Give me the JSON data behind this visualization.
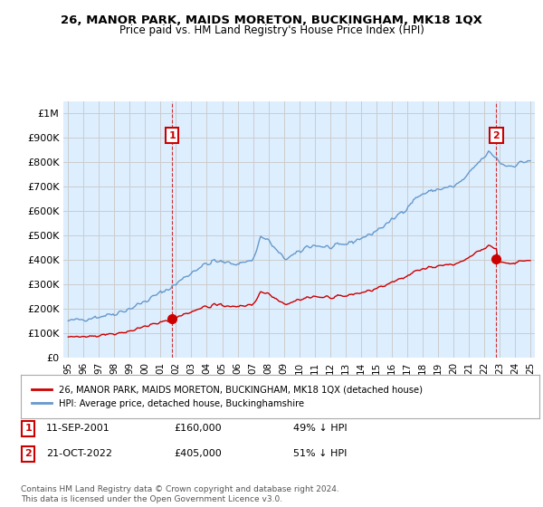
{
  "title": "26, MANOR PARK, MAIDS MORETON, BUCKINGHAM, MK18 1QX",
  "subtitle": "Price paid vs. HM Land Registry's House Price Index (HPI)",
  "red_label": "26, MANOR PARK, MAIDS MORETON, BUCKINGHAM, MK18 1QX (detached house)",
  "blue_label": "HPI: Average price, detached house, Buckinghamshire",
  "annotation1_date": "11-SEP-2001",
  "annotation1_price": "£160,000",
  "annotation1_hpi": "49% ↓ HPI",
  "annotation2_date": "21-OCT-2022",
  "annotation2_price": "£405,000",
  "annotation2_hpi": "51% ↓ HPI",
  "footer": "Contains HM Land Registry data © Crown copyright and database right 2024.\nThis data is licensed under the Open Government Licence v3.0.",
  "red_color": "#cc0000",
  "blue_color": "#6699cc",
  "fill_color": "#ddeeff",
  "background_color": "#ffffff",
  "grid_color": "#cccccc",
  "ylim": [
    0,
    1050000
  ],
  "yticks": [
    0,
    100000,
    200000,
    300000,
    400000,
    500000,
    600000,
    700000,
    800000,
    900000,
    1000000
  ],
  "ytick_labels": [
    "£0",
    "£100K",
    "£200K",
    "£300K",
    "£400K",
    "£500K",
    "£600K",
    "£700K",
    "£800K",
    "£900K",
    "£1M"
  ],
  "sale1_x": 2001.75,
  "sale1_y": 160000,
  "sale2_x": 2022.8,
  "sale2_y": 405000,
  "xlim_left": 1994.7,
  "xlim_right": 2025.3
}
